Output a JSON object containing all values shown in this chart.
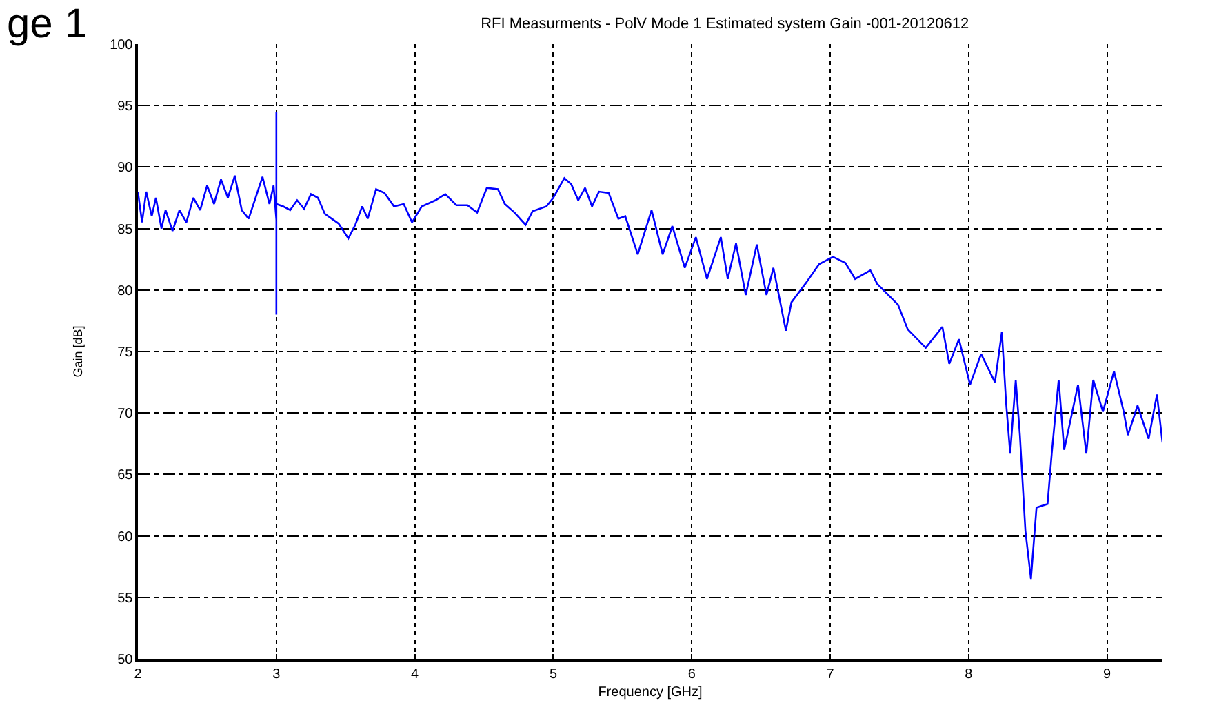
{
  "chart_data": {
    "type": "line",
    "title": "RFI Measurments - PolV Mode 1 Estimated system Gain -001-20120612",
    "xlabel": "Frequency [GHz]",
    "ylabel": "Gain [dB]",
    "annotations": [
      "ge 1"
    ],
    "xlim": [
      2,
      9.4
    ],
    "xticks": [
      2,
      3,
      4,
      5,
      6,
      7,
      8,
      9
    ],
    "ylim": [
      50,
      100
    ],
    "yticks": [
      50,
      55,
      60,
      65,
      70,
      75,
      80,
      85,
      90,
      95,
      100
    ],
    "grid": true,
    "line_style": "solid",
    "marker": "none",
    "series": [
      {
        "color": "#0000ff",
        "x": [
          2.0,
          2.03,
          2.06,
          2.1,
          2.13,
          2.17,
          2.2,
          2.25,
          2.3,
          2.35,
          2.4,
          2.45,
          2.5,
          2.55,
          2.6,
          2.65,
          2.7,
          2.75,
          2.8,
          2.85,
          2.9,
          2.95,
          2.98,
          3.0,
          3.0,
          3.0,
          3.0,
          3.05,
          3.1,
          3.15,
          3.2,
          3.25,
          3.3,
          3.35,
          3.4,
          3.45,
          3.52,
          3.57,
          3.62,
          3.66,
          3.72,
          3.78,
          3.85,
          3.92,
          3.98,
          4.05,
          4.15,
          4.22,
          4.3,
          4.38,
          4.45,
          4.52,
          4.6,
          4.65,
          4.72,
          4.8,
          4.85,
          4.95,
          5.0,
          5.08,
          5.13,
          5.18,
          5.23,
          5.28,
          5.33,
          5.4,
          5.47,
          5.52,
          5.61,
          5.71,
          5.79,
          5.86,
          5.95,
          6.03,
          6.11,
          6.21,
          6.26,
          6.32,
          6.39,
          6.47,
          6.54,
          6.59,
          6.68,
          6.72,
          6.82,
          6.92,
          7.02,
          7.11,
          7.18,
          7.29,
          7.34,
          7.49,
          7.56,
          7.69,
          7.81,
          7.86,
          7.93,
          8.01,
          8.09,
          8.19,
          8.24,
          8.27,
          8.3,
          8.34,
          8.37,
          8.41,
          8.45,
          8.49,
          8.57,
          8.6,
          8.65,
          8.69,
          8.79,
          8.85,
          8.9,
          8.97,
          9.05,
          9.12,
          9.15,
          9.22,
          9.3,
          9.36,
          9.4
        ],
        "values": [
          88,
          85.5,
          88,
          86,
          87.5,
          85,
          86.5,
          84.8,
          86.5,
          85.5,
          87.5,
          86.5,
          88.5,
          87,
          89,
          87.5,
          89.3,
          86.5,
          85.8,
          87.5,
          89.2,
          87,
          88.5,
          85.7,
          94.5,
          78,
          87,
          86.8,
          86.5,
          87.3,
          86.6,
          87.8,
          87.5,
          86.2,
          85.8,
          85.4,
          84.2,
          85.3,
          86.8,
          85.8,
          88.2,
          87.9,
          86.8,
          87.0,
          85.5,
          86.8,
          87.3,
          87.8,
          86.9,
          86.9,
          86.3,
          88.3,
          88.2,
          87.0,
          86.3,
          85.3,
          86.4,
          86.8,
          87.5,
          89.1,
          88.6,
          87.3,
          88.3,
          86.8,
          88.0,
          87.9,
          85.8,
          86.0,
          82.9,
          86.5,
          82.9,
          85.2,
          81.8,
          84.3,
          80.9,
          84.3,
          80.9,
          83.8,
          79.6,
          83.7,
          79.6,
          81.8,
          76.7,
          79.0,
          80.5,
          82.1,
          82.7,
          82.2,
          80.9,
          81.6,
          80.5,
          78.8,
          76.8,
          75.3,
          77.0,
          74.0,
          76.0,
          72.3,
          74.8,
          72.5,
          76.6,
          70.9,
          66.7,
          72.7,
          68.2,
          60.4,
          56.5,
          62.3,
          62.6,
          66.7,
          72.7,
          67.0,
          72.3,
          66.7,
          72.7,
          70.1,
          73.4,
          70.1,
          68.2,
          70.6,
          67.9,
          71.5,
          67.6
        ]
      }
    ]
  }
}
